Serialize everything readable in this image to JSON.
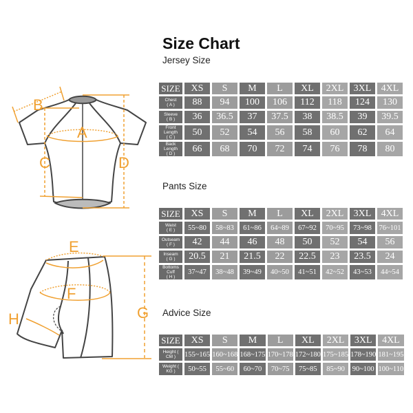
{
  "title": "Size Chart",
  "sizes": [
    "XS",
    "S",
    "M",
    "L",
    "XL",
    "2XL",
    "3XL",
    "4XL"
  ],
  "size_label": "SIZE",
  "column_shades": [
    "dark",
    "light",
    "dark",
    "light",
    "dark",
    "mid",
    "dark",
    "mid"
  ],
  "colors": {
    "accent": "#f0a030",
    "dark_cell": "#707070",
    "light_cell": "#9c9c9c",
    "outline": "#444444"
  },
  "figure_labels": {
    "A": "A",
    "B": "B",
    "C": "C",
    "D": "D",
    "E": "E",
    "F": "F",
    "G": "G",
    "H": "H"
  },
  "jersey": {
    "heading": "Jersey Size",
    "rows": [
      {
        "label": "Chest",
        "code": "( A )",
        "values": [
          "88",
          "94",
          "100",
          "106",
          "112",
          "118",
          "124",
          "130"
        ]
      },
      {
        "label": "Sleeve",
        "code": "( B )",
        "values": [
          "36",
          "36.5",
          "37",
          "37.5",
          "38",
          "38.5",
          "39",
          "39.5"
        ]
      },
      {
        "label": "Front Length",
        "code": "( C )",
        "values": [
          "50",
          "52",
          "54",
          "56",
          "58",
          "60",
          "62",
          "64"
        ]
      },
      {
        "label": "Back Length",
        "code": "( D )",
        "values": [
          "66",
          "68",
          "70",
          "72",
          "74",
          "76",
          "78",
          "80"
        ]
      }
    ]
  },
  "pants": {
    "heading": "Pants Size",
    "rows": [
      {
        "label": "Waist",
        "code": "( E )",
        "values": [
          "55~80",
          "58~83",
          "61~86",
          "64~89",
          "67~92",
          "70~95",
          "73~98",
          "76~101"
        ]
      },
      {
        "label": "Outseam",
        "code": "( F )",
        "values": [
          "42",
          "44",
          "46",
          "48",
          "50",
          "52",
          "54",
          "56"
        ]
      },
      {
        "label": "Inseam",
        "code": "( G )",
        "values": [
          "20.5",
          "21",
          "21.5",
          "22",
          "22.5",
          "23",
          "23.5",
          "24"
        ]
      },
      {
        "label": "Bottoms Cuff",
        "code": "( H )",
        "values": [
          "37~47",
          "38~48",
          "39~49",
          "40~50",
          "41~51",
          "42~52",
          "43~53",
          "44~54"
        ]
      }
    ]
  },
  "advice": {
    "heading": "Advice Size",
    "rows": [
      {
        "label": "Height ( CM )",
        "code": "",
        "values": [
          "155~165",
          "160~168",
          "168~175",
          "170~178",
          "172~180",
          "175~185",
          "178~190",
          "181~195"
        ]
      },
      {
        "label": "Weight ( KG )",
        "code": "",
        "values": [
          "50~55",
          "55~60",
          "60~70",
          "70~75",
          "75~85",
          "85~90",
          "90~100",
          "100~110"
        ]
      }
    ]
  }
}
